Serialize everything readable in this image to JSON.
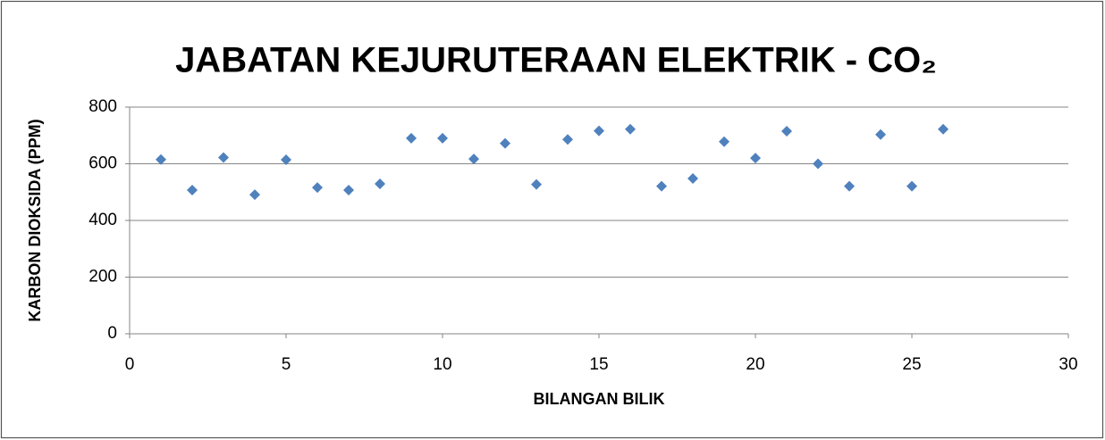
{
  "chart_data": {
    "type": "scatter",
    "title": "JABATAN KEJURUTERAAN ELEKTRIK - CO₂",
    "x_label": "BILANGAN BILIK",
    "y_label": "KARBON DIOKSIDA (PPM)",
    "series": [
      {
        "color": "#4f81bd",
        "x": [
          1,
          2,
          3,
          4,
          5,
          6,
          7,
          8,
          9,
          10,
          11,
          12,
          13,
          14,
          15,
          16,
          17,
          18,
          19,
          20,
          21,
          22,
          23,
          24,
          25,
          26
        ],
        "values": [
          615,
          507,
          622,
          491,
          614,
          516,
          507,
          529,
          690,
          690,
          617,
          672,
          527,
          686,
          716,
          722,
          521,
          548,
          678,
          620,
          715,
          600,
          521,
          703,
          521,
          722
        ]
      }
    ],
    "xlim": [
      0,
      30
    ],
    "xticks": [
      0,
      5,
      10,
      15,
      20,
      25,
      30
    ],
    "ylim": [
      0,
      800
    ],
    "yticks": [
      0,
      200,
      400,
      600,
      800
    ],
    "grid": true
  }
}
